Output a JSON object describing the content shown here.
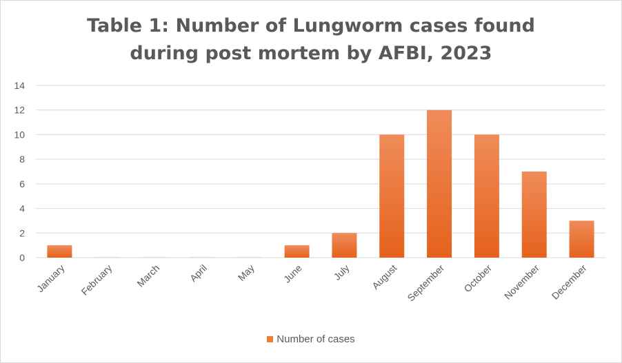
{
  "chart_data": {
    "type": "bar",
    "title_lines": [
      "Table 1: Number of Lungworm cases found",
      "during post mortem by AFBI, 2023"
    ],
    "categories": [
      "January",
      "February",
      "March",
      "April",
      "May",
      "June",
      "July",
      "August",
      "September",
      "October",
      "November",
      "December"
    ],
    "series": [
      {
        "name": "Number of cases",
        "values": [
          1,
          0,
          0,
          0,
          0,
          1,
          2,
          10,
          12,
          10,
          7,
          3
        ]
      }
    ],
    "y_ticks": [
      "0",
      "2",
      "4",
      "6",
      "8",
      "10",
      "12",
      "14"
    ],
    "ylim": [
      0,
      14
    ],
    "xlabel": "",
    "ylabel": "",
    "grid": true,
    "legend_position": "bottom",
    "colors": {
      "bar_top": "#f08c5a",
      "bar_bottom": "#e5621c",
      "legend": "#ed7d31",
      "grid": "#d9d9d9",
      "text": "#595959"
    }
  }
}
